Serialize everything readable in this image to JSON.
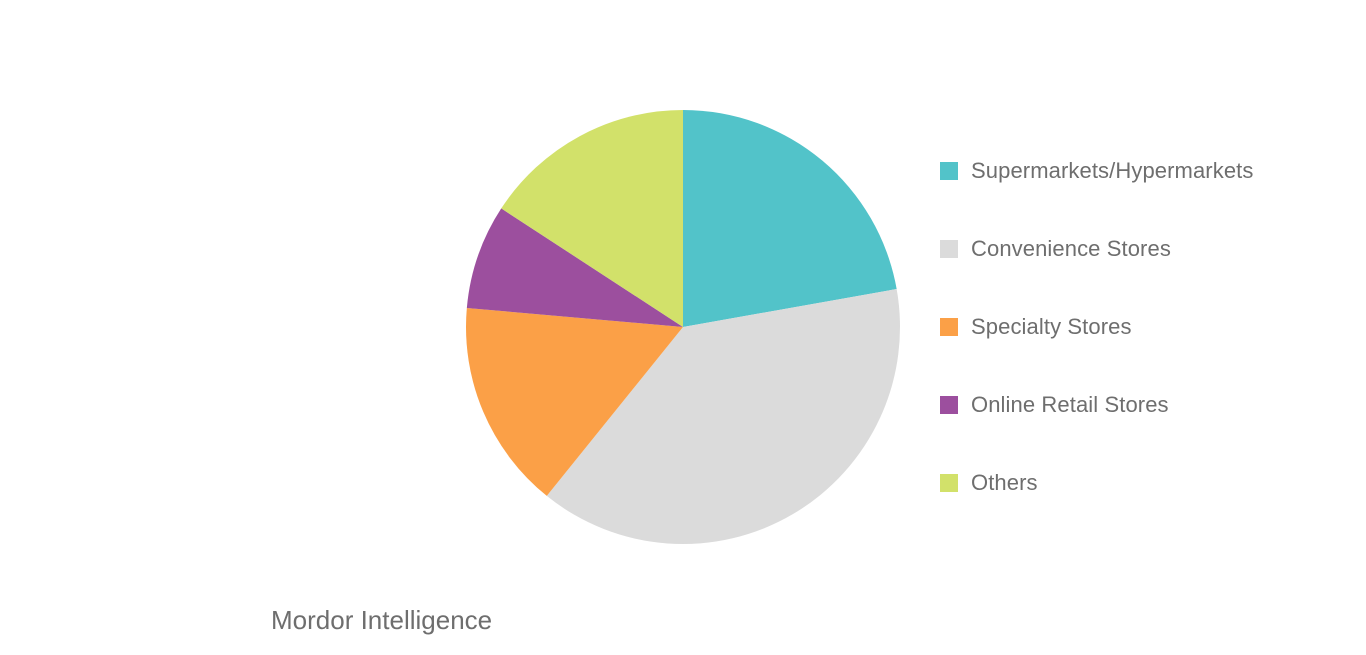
{
  "chart_data": {
    "type": "pie",
    "slices": [
      {
        "label": "Supermarkets/Hypermarkets",
        "value": 22.2,
        "color": "#52c3c9"
      },
      {
        "label": "Convenience Stores",
        "value": 38.6,
        "color": "#dbdbdb"
      },
      {
        "label": "Specialty Stores",
        "value": 15.6,
        "color": "#fba047"
      },
      {
        "label": "Online Retail Stores",
        "value": 7.8,
        "color": "#9c4f9e"
      },
      {
        "label": "Others",
        "value": 15.8,
        "color": "#d2e16a"
      }
    ],
    "start_angle": "12 o'clock",
    "direction": "clockwise",
    "legend_position": "right"
  },
  "brand": "Mordor Intelligence"
}
